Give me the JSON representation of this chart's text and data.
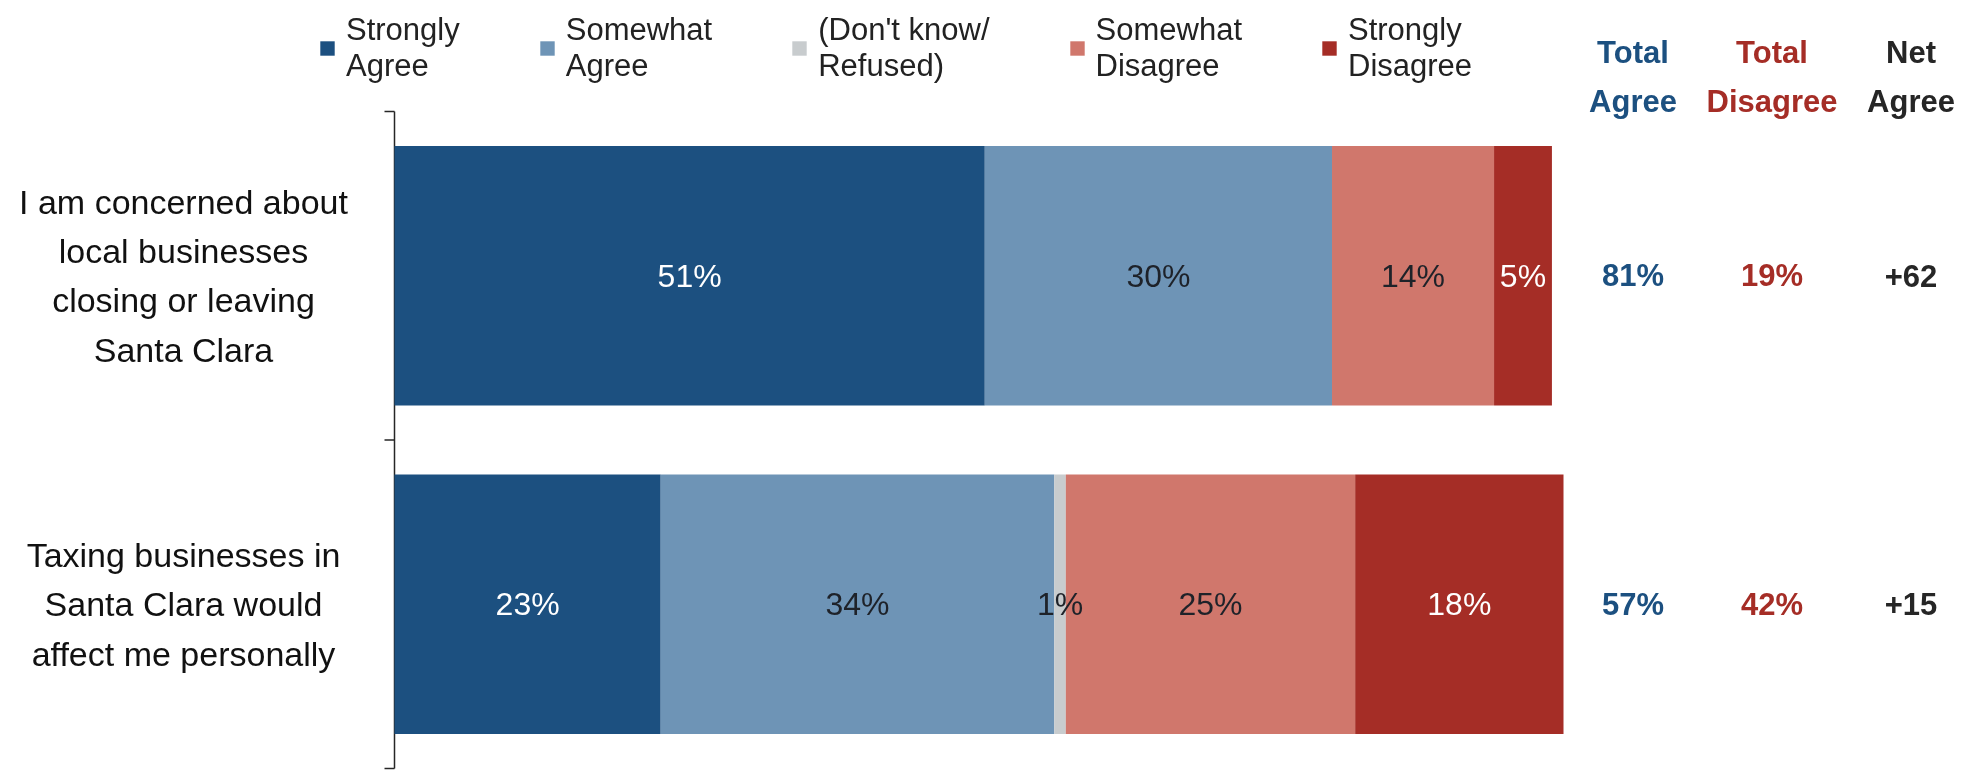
{
  "chart_data": {
    "type": "bar",
    "orientation": "horizontal",
    "stacked": true,
    "legend": "top",
    "tick_labels": "y",
    "categories": [
      "I am concerned about\nlocal businesses\nclosing or leaving\nSanta Clara",
      "Taxing businesses in\nSanta Clara would\naffect me personally"
    ],
    "series": [
      {
        "name": "Strongly\nAgree",
        "color": "#1c5080",
        "values": [
          51,
          23
        ],
        "value_labels": [
          "51%",
          "23%"
        ]
      },
      {
        "name": "Somewhat\nAgree",
        "color": "#6e94b6",
        "values": [
          30,
          34
        ],
        "value_labels": [
          "30%",
          "34%"
        ]
      },
      {
        "name": "(Don't know/\nRefused)",
        "color": "#c8ccce",
        "values": [
          null,
          1
        ],
        "value_labels": [
          null,
          "1%"
        ]
      },
      {
        "name": "Somewhat\nDisagree",
        "color": "#d0776c",
        "values": [
          14,
          25
        ],
        "value_labels": [
          "14%",
          "25%"
        ]
      },
      {
        "name": "Strongly\nDisagree",
        "color": "#a52d26",
        "values": [
          5,
          18
        ],
        "value_labels": [
          "5%",
          "18%"
        ]
      }
    ],
    "annotations": [
      "Total\nAgree",
      "Total\nDisagree",
      "Net\nAgree",
      "81%",
      "19%",
      "+62",
      "57%",
      "42%",
      "+15"
    ]
  }
}
